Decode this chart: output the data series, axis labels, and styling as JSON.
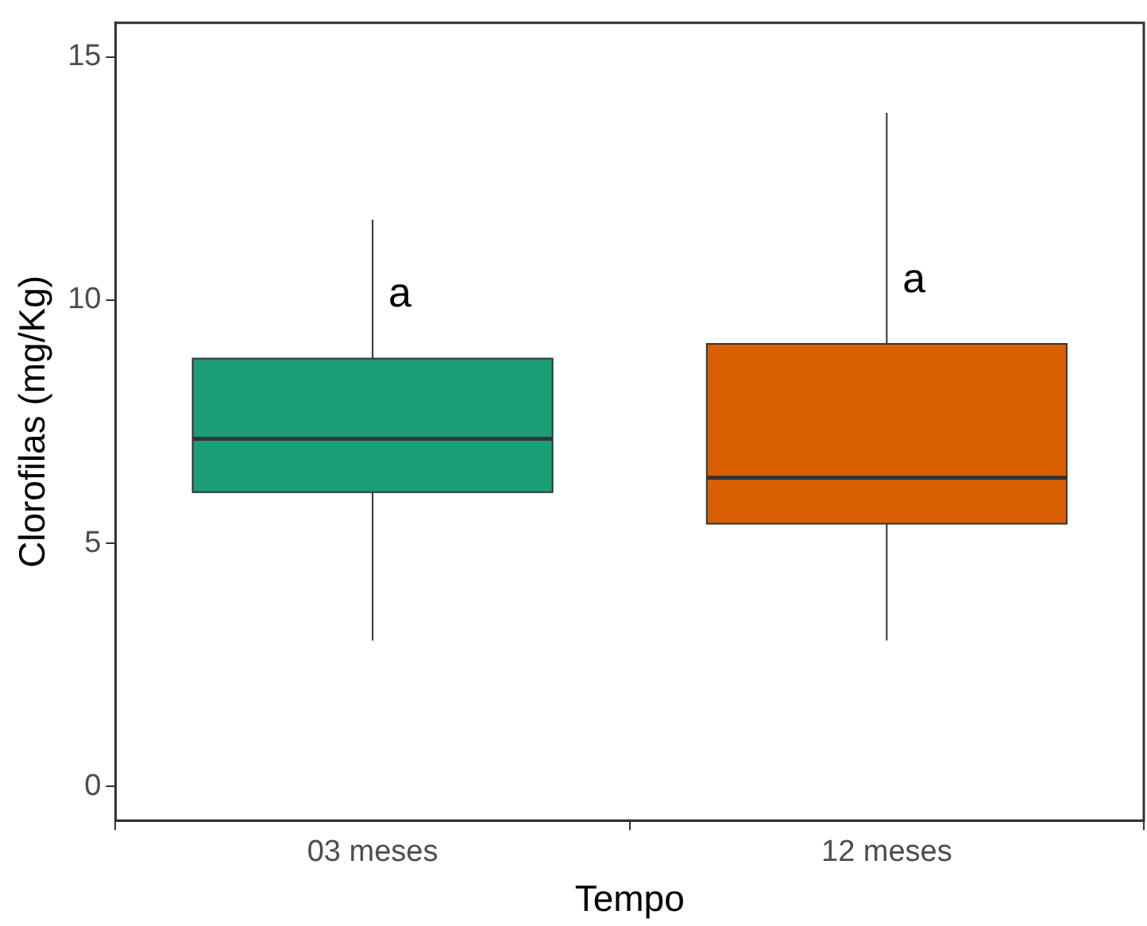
{
  "chart_data": {
    "type": "box",
    "xlabel": "Tempo",
    "ylabel": "Clorofilas (mg/Kg)",
    "categories": [
      "03 meses",
      "12 meses"
    ],
    "boxes": [
      {
        "low": 3.0,
        "q1": 6.05,
        "median": 7.15,
        "q3": 8.8,
        "high": 11.65
      },
      {
        "low": 3.0,
        "q1": 5.4,
        "median": 6.35,
        "q3": 9.1,
        "high": 13.85
      }
    ],
    "colors": [
      "#1b9e77",
      "#d95f02"
    ],
    "ylim": [
      -0.7,
      15.7
    ],
    "yticks": [
      0,
      5,
      10,
      15
    ],
    "grid": false,
    "legend": false,
    "annotations": [
      {
        "text": "a",
        "x": "03 meses",
        "y": 10.1
      },
      {
        "text": "a",
        "x": "12 meses",
        "y": 10.4
      }
    ]
  }
}
